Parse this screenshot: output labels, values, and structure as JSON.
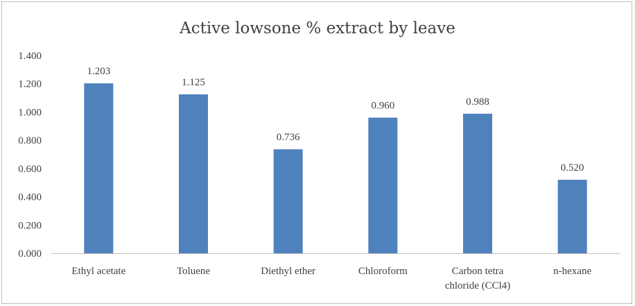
{
  "chart_data": {
    "type": "bar",
    "title": "Active lowsone  % extract by leave",
    "categories": [
      "Ethyl acetate",
      "Toluene",
      "Diethyl ether",
      "Chloroform",
      "Carbon tetra chloride  (CCl4)",
      "n-hexane"
    ],
    "category_lines": [
      [
        "Ethyl acetate"
      ],
      [
        "Toluene"
      ],
      [
        "Diethyl ether"
      ],
      [
        "Chloroform"
      ],
      [
        "Carbon tetra",
        "chloride  (CCl4)"
      ],
      [
        "n-hexane"
      ]
    ],
    "values": [
      1.203,
      1.125,
      0.736,
      0.96,
      0.988,
      0.52
    ],
    "data_labels": [
      "1.203",
      "1.125",
      "0.736",
      "0.960",
      "0.988",
      "0.520"
    ],
    "yticks": [
      "0.000",
      "0.200",
      "0.400",
      "0.600",
      "0.800",
      "1.000",
      "1.200",
      "1.400"
    ],
    "ylim": [
      0,
      1.4
    ],
    "grid": false,
    "legend": "none",
    "xlabel": "",
    "ylabel": "",
    "colors": {
      "bar": "#4f81bd",
      "axis": "#bfbfbf",
      "text": "#404040"
    }
  }
}
